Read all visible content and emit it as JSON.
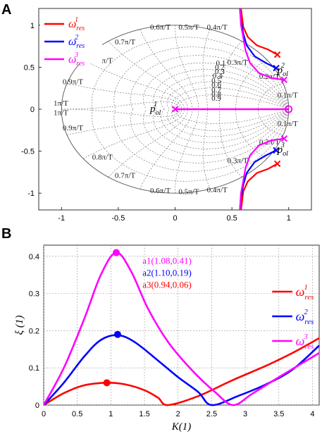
{
  "chart_data": [
    {
      "type": "line",
      "panel": "A",
      "xlim": [
        -1.2,
        1.2
      ],
      "ylim": [
        -1.2,
        1.2
      ],
      "x_ticks": [
        "-1",
        "-0.5",
        "0",
        "0.5",
        "1"
      ],
      "y_ticks": [
        "1",
        "0.5",
        "0",
        "-0.5",
        "-1"
      ],
      "grid_labels": {
        "damping": [
          "0.1",
          "0.2",
          "0.3",
          "0.4",
          "0.5",
          "0.6",
          "0.7",
          "0.8",
          "0.9"
        ],
        "frequency": [
          "0.1π/T",
          "0.2π/T",
          "0.3π/T",
          "0.4π/T",
          "0.5π/T",
          "0.6π/T",
          "0.7π/T",
          "0.8π/T",
          "0.9π/T",
          "1π/T"
        ]
      },
      "pole_labels": [
        "p",
        "ol",
        "1",
        "2",
        "3"
      ],
      "series": [
        {
          "name": "ω_res^1",
          "color": "#ff0000",
          "upper": [
            [
              0.9,
              0.65
            ],
            [
              0.82,
              0.71
            ],
            [
              0.72,
              0.76
            ],
            [
              0.64,
              0.86
            ],
            [
              0.6,
              0.98
            ],
            [
              0.58,
              1.2
            ]
          ]
        },
        {
          "name": "ω_res^2",
          "color": "#0000ff",
          "upper": [
            [
              0.89,
              0.49
            ],
            [
              0.8,
              0.55
            ],
            [
              0.7,
              0.63
            ],
            [
              0.63,
              0.76
            ],
            [
              0.6,
              0.9
            ],
            [
              0.58,
              1.05
            ],
            [
              0.57,
              1.2
            ]
          ]
        },
        {
          "name": "ω_res^3",
          "color": "#ff00ff",
          "upper": [
            [
              0.96,
              0.35
            ],
            [
              0.85,
              0.37
            ],
            [
              0.74,
              0.43
            ],
            [
              0.66,
              0.55
            ],
            [
              0.62,
              0.7
            ],
            [
              0.6,
              0.85
            ],
            [
              0.58,
              1.0
            ],
            [
              0.57,
              1.2
            ]
          ]
        }
      ],
      "legend": {
        "labels": [
          "ω",
          "res",
          "1",
          "2",
          "3"
        ],
        "position": "top-left"
      }
    },
    {
      "type": "line",
      "panel": "B",
      "xlabel": "K(1)",
      "ylabel": "ξ (1)",
      "xlim": [
        0,
        4.1
      ],
      "ylim": [
        0,
        0.43
      ],
      "x_ticks": [
        "0",
        "0.5",
        "1",
        "1.5",
        "2",
        "2.5",
        "3",
        "3.5",
        "4"
      ],
      "y_ticks": [
        "0",
        "0.1",
        "0.2",
        "0.3",
        "0.4"
      ],
      "series": [
        {
          "name": "ω_res^1",
          "color": "#ff0000",
          "points": [
            [
              0,
              0
            ],
            [
              0.3,
              0.032
            ],
            [
              0.6,
              0.053
            ],
            [
              0.94,
              0.06
            ],
            [
              1.2,
              0.056
            ],
            [
              1.5,
              0.04
            ],
            [
              1.7,
              0.02
            ],
            [
              1.85,
              0
            ],
            [
              2.3,
              0.024
            ],
            [
              2.8,
              0.066
            ],
            [
              3.3,
              0.105
            ],
            [
              3.7,
              0.14
            ],
            [
              4.1,
              0.18
            ]
          ]
        },
        {
          "name": "ω_res^2",
          "color": "#0000ff",
          "points": [
            [
              0,
              0
            ],
            [
              0.3,
              0.06
            ],
            [
              0.6,
              0.13
            ],
            [
              0.85,
              0.175
            ],
            [
              1.1,
              0.188
            ],
            [
              1.35,
              0.17
            ],
            [
              1.7,
              0.12
            ],
            [
              2.0,
              0.075
            ],
            [
              2.3,
              0.035
            ],
            [
              2.5,
              0
            ],
            [
              2.9,
              0.025
            ],
            [
              3.3,
              0.055
            ],
            [
              3.7,
              0.095
            ],
            [
              4.1,
              0.16
            ]
          ]
        },
        {
          "name": "ω_res^3",
          "color": "#ff00ff",
          "points": [
            [
              0,
              0
            ],
            [
              0.3,
              0.1
            ],
            [
              0.6,
              0.23
            ],
            [
              0.85,
              0.35
            ],
            [
              1.08,
              0.41
            ],
            [
              1.3,
              0.36
            ],
            [
              1.55,
              0.26
            ],
            [
              1.85,
              0.17
            ],
            [
              2.2,
              0.095
            ],
            [
              2.55,
              0.035
            ],
            [
              2.82,
              0
            ],
            [
              3.1,
              0.03
            ],
            [
              3.5,
              0.075
            ],
            [
              4.1,
              0.14
            ]
          ]
        }
      ],
      "markers": [
        {
          "x": 1.08,
          "y": 0.41,
          "color": "#ff00ff"
        },
        {
          "x": 1.1,
          "y": 0.19,
          "color": "#0000ff"
        },
        {
          "x": 0.94,
          "y": 0.06,
          "color": "#ff0000"
        }
      ],
      "annotations": [
        {
          "text": "a1(1.08,0.41)",
          "color": "#ff00ff"
        },
        {
          "text": "a2(1.10,0.19)",
          "color": "#0000ff"
        },
        {
          "text": "a3(0.94,0.06)",
          "color": "#ff0000"
        }
      ],
      "legend": {
        "labels": [
          "ω",
          "res",
          "1",
          "2",
          "3"
        ],
        "position": "right"
      }
    }
  ],
  "panel_letters": [
    "A",
    "B"
  ]
}
